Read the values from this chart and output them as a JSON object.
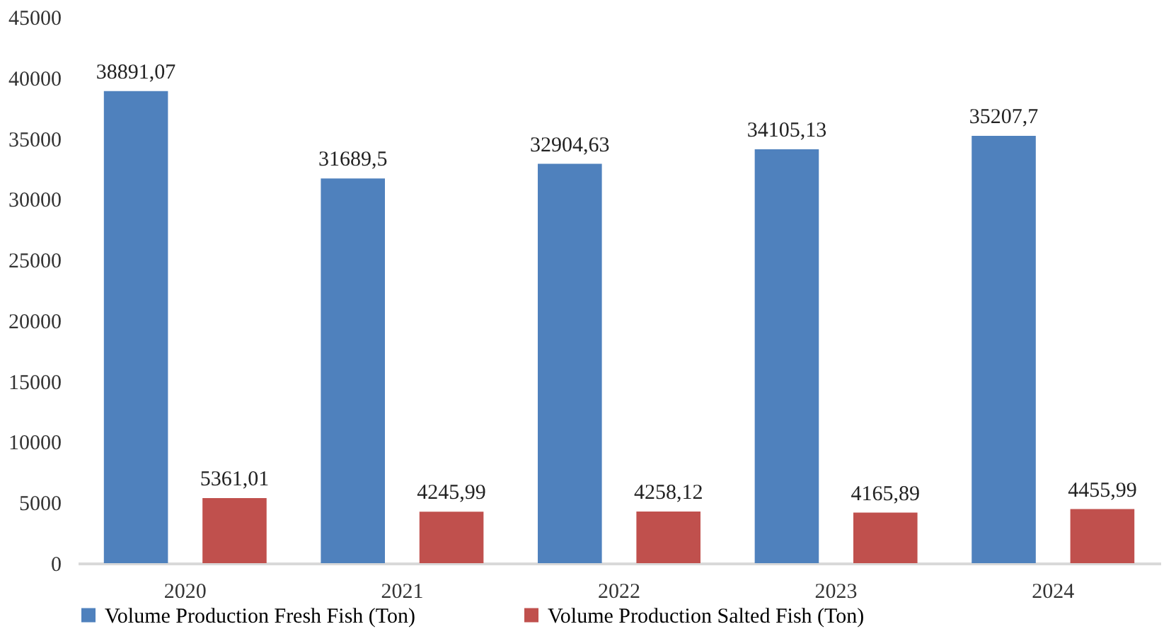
{
  "chart_data": {
    "type": "bar",
    "categories": [
      "2020",
      "2021",
      "2022",
      "2023",
      "2024"
    ],
    "series": [
      {
        "name": "Volume Production Fresh Fish  (Ton)",
        "color": "#4f81bd",
        "values": [
          38891.07,
          31689.5,
          32904.63,
          34105.13,
          35207.7
        ],
        "value_labels": [
          "38891,07",
          "31689,5",
          "32904,63",
          "34105,13",
          "35207,7"
        ]
      },
      {
        "name": "Volume Production Salted Fish (Ton)",
        "color": "#c0504d",
        "values": [
          5361.01,
          4245.99,
          4258.12,
          4165.89,
          4455.99
        ],
        "value_labels": [
          "5361,01",
          "4245,99",
          "4258,12",
          "4165,89",
          "4455,99"
        ]
      }
    ],
    "ylim": [
      0,
      45000
    ],
    "yticks": [
      0,
      5000,
      10000,
      15000,
      20000,
      25000,
      30000,
      35000,
      40000,
      45000
    ],
    "grid": false,
    "legend": "bottom"
  }
}
